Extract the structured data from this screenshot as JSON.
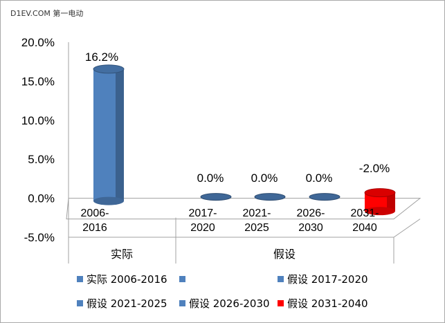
{
  "watermark": "D1EV.COM 第一电动",
  "chart_data": {
    "type": "bar",
    "variant": "3d-cylinder",
    "categories": [
      "2006-2016",
      "2017-2020",
      "2021-2025",
      "2026-2030",
      "2031-2040"
    ],
    "category_lines": [
      [
        "2006-",
        "2016"
      ],
      [
        "2017-",
        "2020"
      ],
      [
        "2021-",
        "2025"
      ],
      [
        "2026-",
        "2030"
      ],
      [
        "2031-",
        "2040"
      ]
    ],
    "groups": [
      {
        "label": "实际",
        "categories": [
          "2006-2016"
        ]
      },
      {
        "label": "假设",
        "categories": [
          "2017-2020",
          "2021-2025",
          "2026-2030",
          "2031-2040"
        ]
      }
    ],
    "values": [
      16.2,
      0.0,
      0.0,
      0.0,
      -2.0
    ],
    "data_labels": [
      "16.2%",
      "0.0%",
      "0.0%",
      "0.0%",
      "-2.0%"
    ],
    "colors": [
      "#4f81bd",
      "#4f81bd",
      "#4f81bd",
      "#4f81bd",
      "#ff0000"
    ],
    "ylim": [
      -5,
      20
    ],
    "yticks": [
      20,
      15,
      10,
      5,
      0,
      -5
    ],
    "ytick_labels": [
      "20.0%",
      "15.0%",
      "10.0%",
      "5.0%",
      "0.0%",
      "-5.0%"
    ],
    "legend": [
      {
        "label": "实际 2006-2016",
        "color": "#4f81bd"
      },
      {
        "label": "",
        "color": "#4f81bd"
      },
      {
        "label": "假设 2017-2020",
        "color": "#4f81bd"
      },
      {
        "label": "假设 2021-2025",
        "color": "#4f81bd"
      },
      {
        "label": "假设 2026-2030",
        "color": "#4f81bd"
      },
      {
        "label": "假设 2031-2040",
        "color": "#ff0000"
      }
    ],
    "legend_position": "bottom",
    "grid": false
  }
}
